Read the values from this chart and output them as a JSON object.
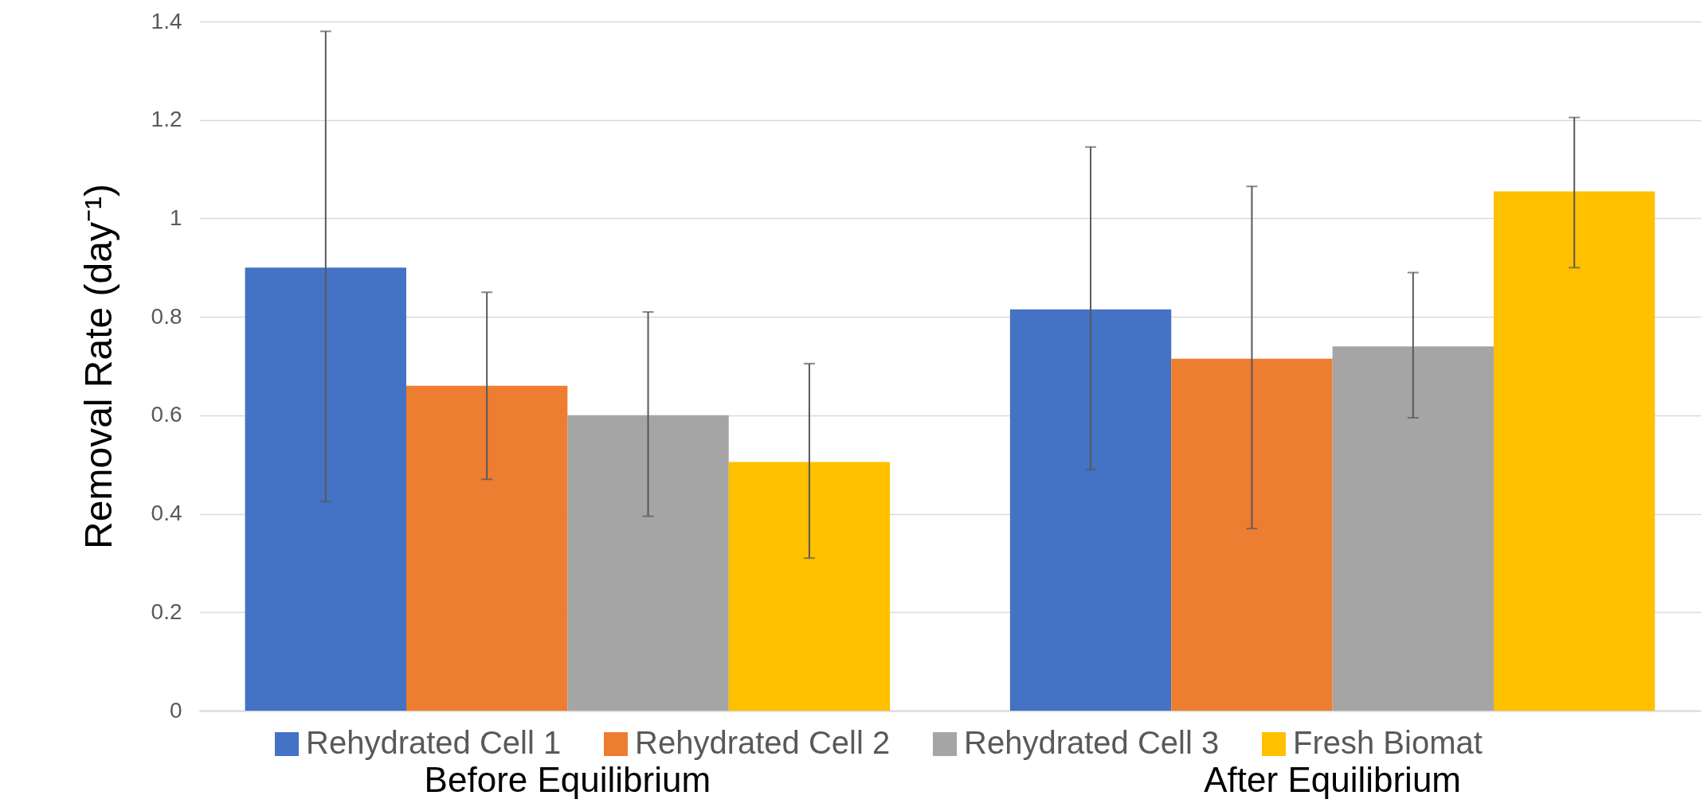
{
  "chart_data": {
    "type": "bar",
    "ylabel": "Removal Rate (day⁻¹)",
    "categories": [
      "Before Equilibrium",
      "After Equilibrium"
    ],
    "series": [
      {
        "name": "Rehydrated Cell 1",
        "color": "#4472c4",
        "values": [
          0.9,
          0.815
        ],
        "errors": [
          [
            0.425,
            1.38
          ],
          [
            0.49,
            1.145
          ]
        ]
      },
      {
        "name": "Rehydrated Cell 2",
        "color": "#ed7d31",
        "values": [
          0.66,
          0.715
        ],
        "errors": [
          [
            0.47,
            0.85
          ],
          [
            0.37,
            1.065
          ]
        ]
      },
      {
        "name": "Rehydrated Cell 3",
        "color": "#a5a5a5",
        "values": [
          0.6,
          0.74
        ],
        "errors": [
          [
            0.395,
            0.81
          ],
          [
            0.595,
            0.89
          ]
        ]
      },
      {
        "name": "Fresh Biomat",
        "color": "#ffc000",
        "values": [
          0.505,
          1.055
        ],
        "errors": [
          [
            0.31,
            0.705
          ],
          [
            0.9,
            1.205
          ]
        ]
      }
    ],
    "ylim": [
      0,
      1.4
    ],
    "yticks": [
      0,
      0.2,
      0.4,
      0.6,
      0.8,
      1,
      1.2,
      1.4
    ],
    "grid": "y",
    "legend": "bottom"
  }
}
